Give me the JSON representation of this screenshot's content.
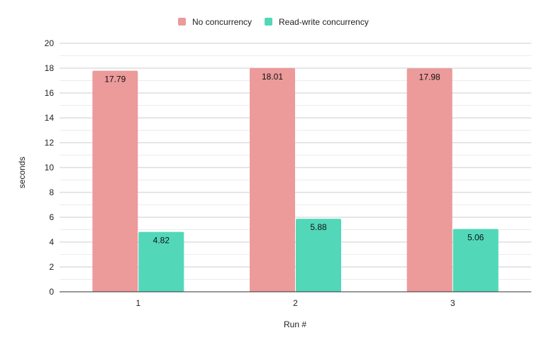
{
  "chart_data": {
    "type": "bar",
    "title": "",
    "xlabel": "Run #",
    "ylabel": "seconds",
    "categories": [
      "1",
      "2",
      "3"
    ],
    "series": [
      {
        "name": "No concurrency",
        "values": [
          17.79,
          18.01,
          17.98
        ],
        "labels": [
          "17.79",
          "18.01",
          "17.98"
        ],
        "color": "#ec9a9a"
      },
      {
        "name": "Read-write concurrency",
        "values": [
          4.82,
          5.88,
          5.06
        ],
        "labels": [
          "4.82",
          "5.88",
          "5.06"
        ],
        "color": "#52d8b9"
      }
    ],
    "ylim": [
      0,
      20
    ],
    "yticks": [
      "0",
      "2",
      "4",
      "6",
      "8",
      "10",
      "12",
      "14",
      "16",
      "18",
      "20"
    ],
    "grid": true,
    "legend_position": "top-center"
  }
}
